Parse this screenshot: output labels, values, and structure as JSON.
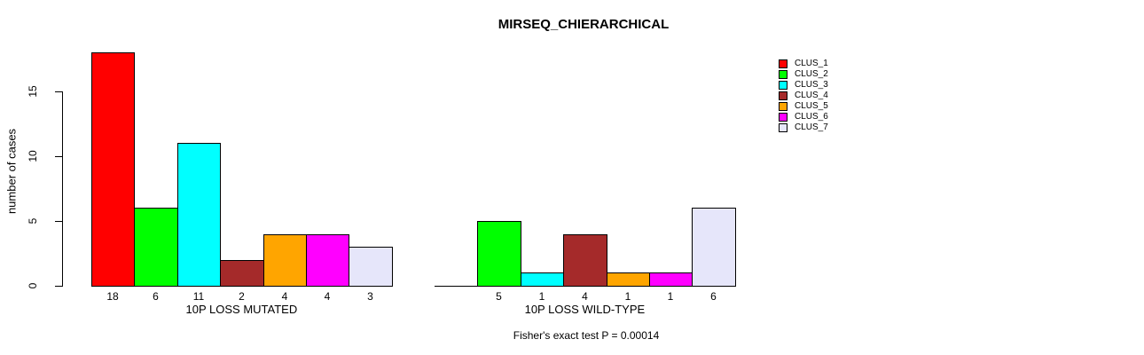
{
  "chart_data": {
    "type": "bar",
    "title": "MIRSEQ_CHIERARCHICAL",
    "ylabel": "number of cases",
    "xlabel": "",
    "ylim": [
      0,
      18
    ],
    "yticks": [
      0,
      5,
      10,
      15
    ],
    "grid": false,
    "legend_position": "right",
    "legend": [
      "CLUS_1",
      "CLUS_2",
      "CLUS_3",
      "CLUS_4",
      "CLUS_5",
      "CLUS_6",
      "CLUS_7"
    ],
    "colors": [
      "#FF0000",
      "#00FF00",
      "#00FFFF",
      "#A52A2A",
      "#FFA500",
      "#FF00FF",
      "#E6E6FA"
    ],
    "groups": [
      {
        "label": "10P LOSS MUTATED",
        "values": [
          18,
          6,
          11,
          2,
          4,
          4,
          3
        ],
        "bar_labels": [
          "18",
          "6",
          "11",
          "2",
          "4",
          "4",
          "3"
        ]
      },
      {
        "label": "10P LOSS WILD-TYPE",
        "values": [
          0,
          5,
          1,
          4,
          1,
          1,
          6
        ],
        "bar_labels": [
          "",
          "5",
          "1",
          "4",
          "1",
          "1",
          "6"
        ]
      }
    ],
    "annotation": "Fisher's exact test P = 0.00014"
  }
}
